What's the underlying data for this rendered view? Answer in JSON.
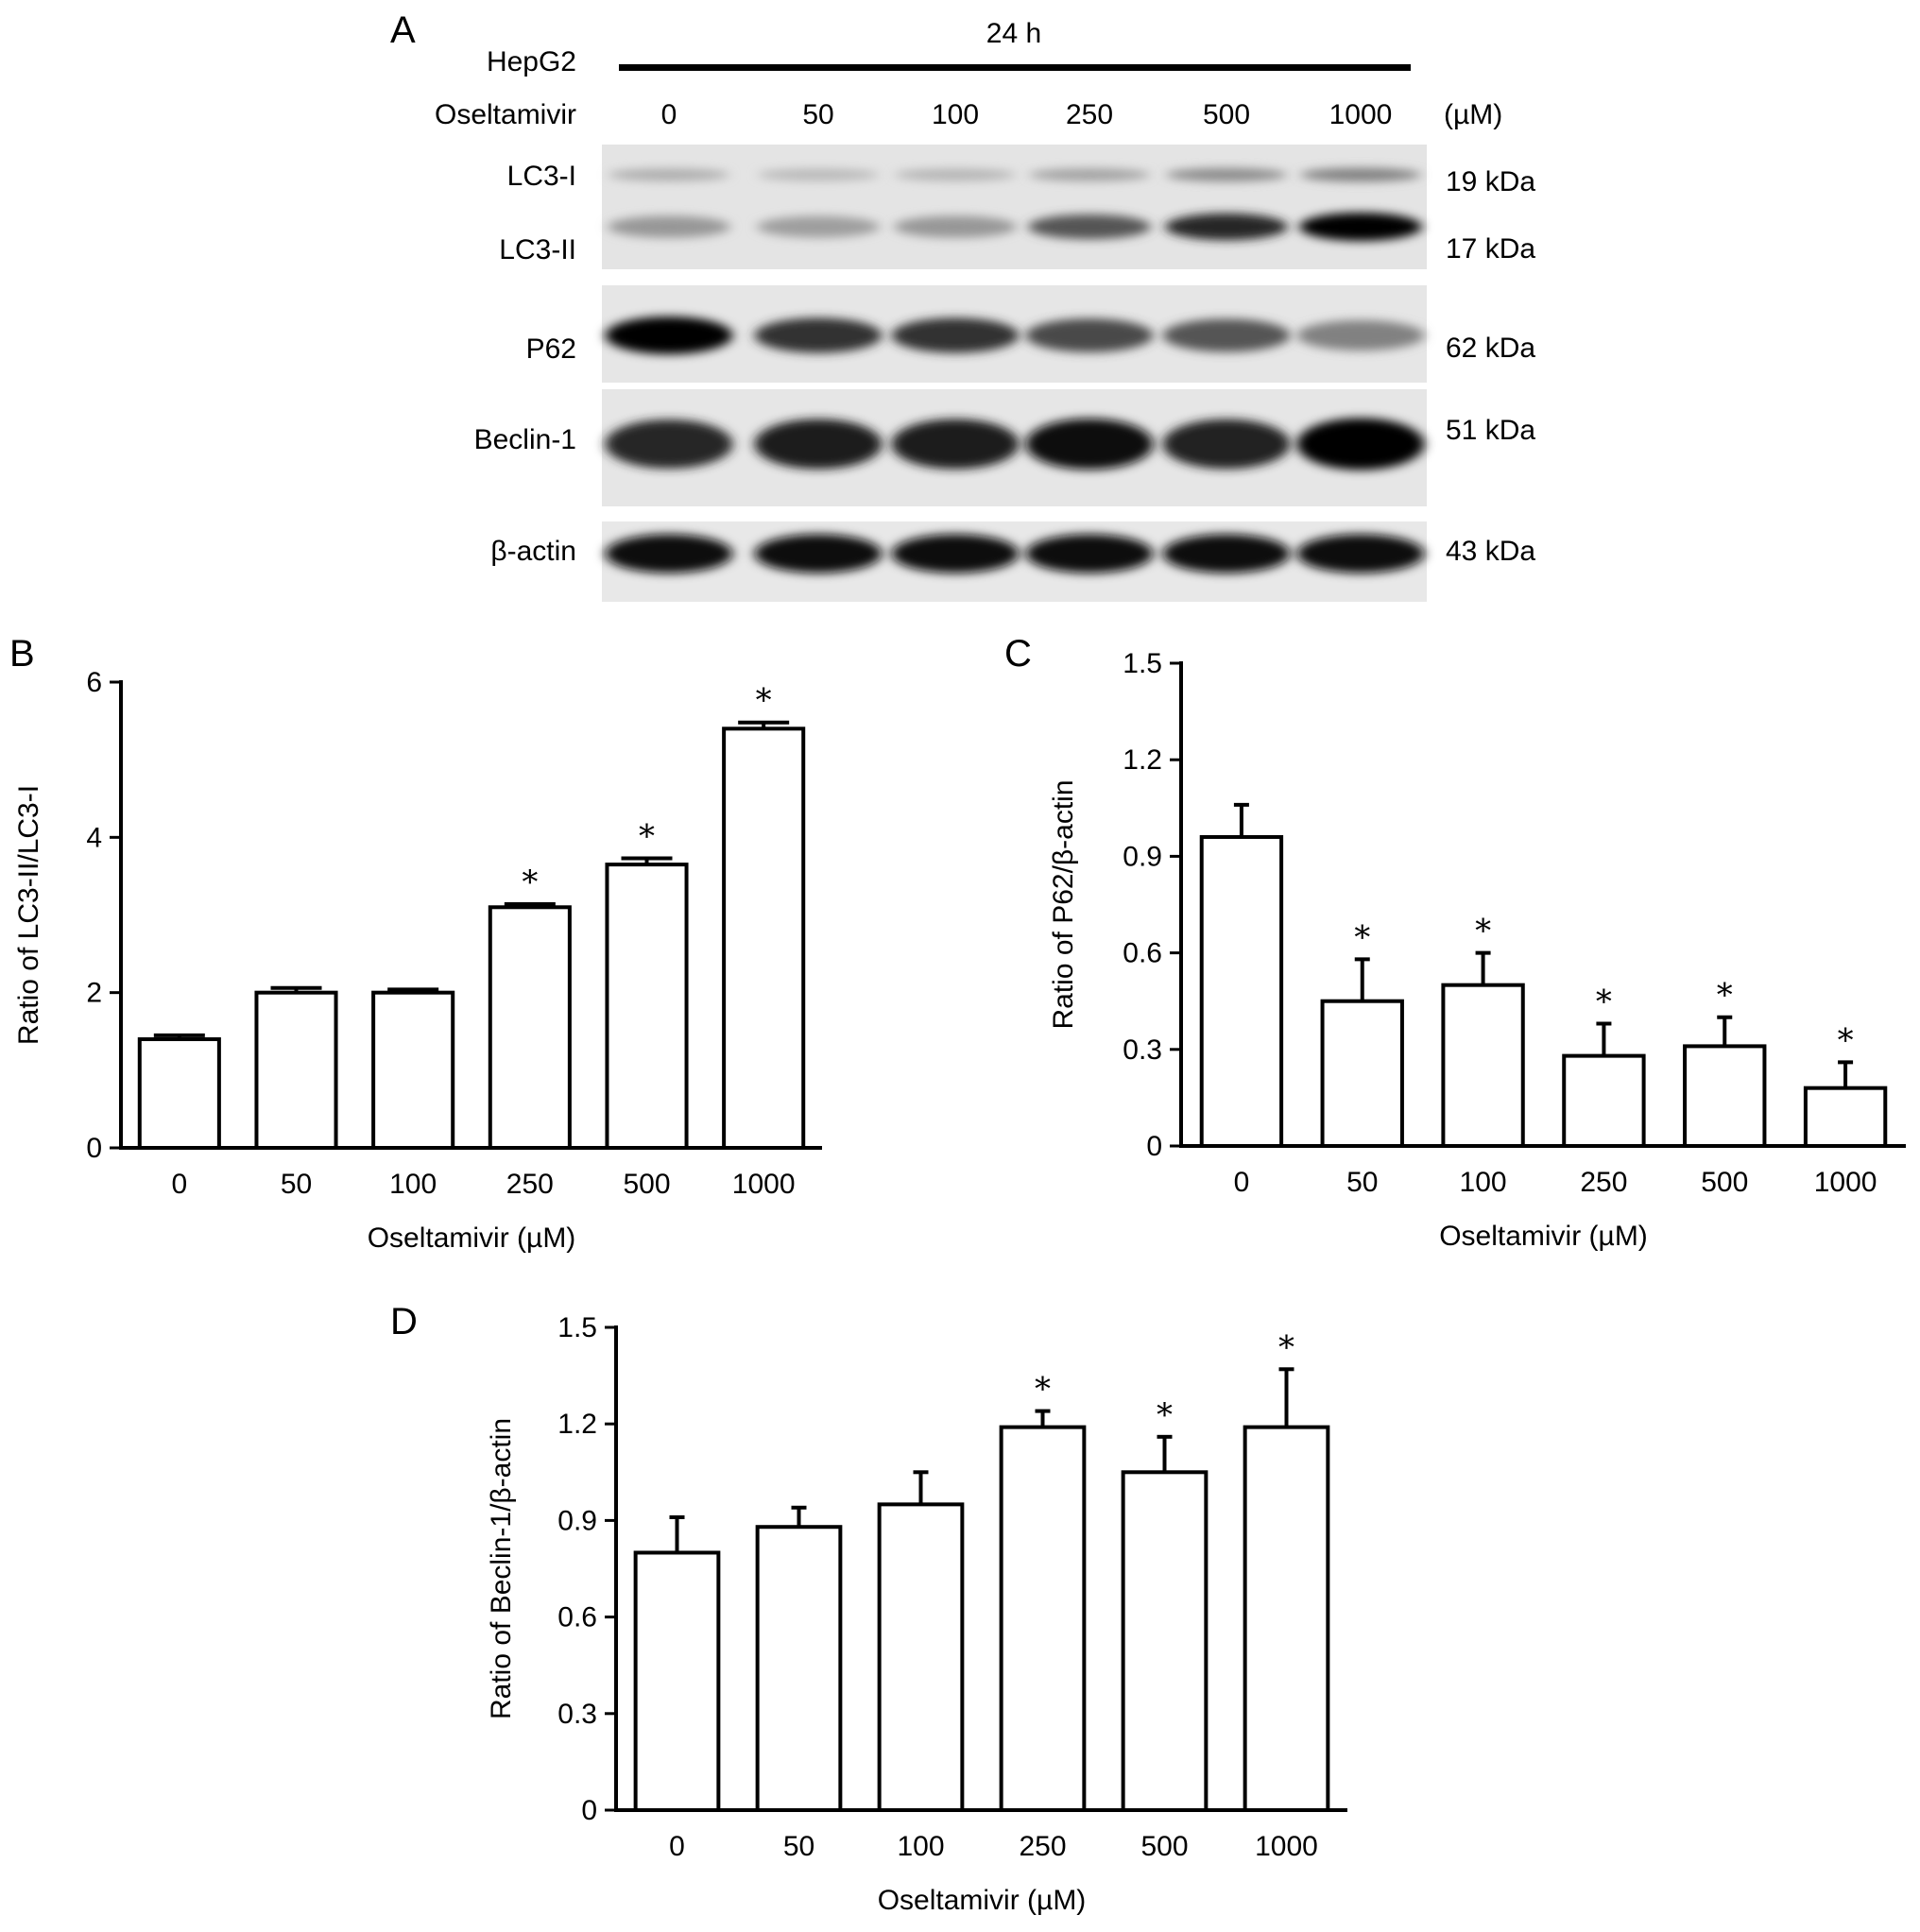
{
  "panel_a": {
    "panel_label": "A",
    "time_label": "24 h",
    "cell_line": "HepG2",
    "treatment_label": "Oseltamivir",
    "unit_label": "(µM)",
    "concentrations": [
      "0",
      "50",
      "100",
      "250",
      "500",
      "1000"
    ],
    "bands": [
      {
        "label": "LC3-I",
        "mw": "19 kDa"
      },
      {
        "label": "LC3-II",
        "mw": "17 kDa"
      },
      {
        "label": "P62",
        "mw": "62 kDa"
      },
      {
        "label": "Beclin-1",
        "mw": "51 kDa"
      },
      {
        "label": "β-actin",
        "mw": "43 kDa"
      }
    ],
    "band_intensity": {
      "LC3-I": [
        0.25,
        0.2,
        0.22,
        0.3,
        0.4,
        0.45
      ],
      "LC3-II": [
        0.35,
        0.32,
        0.35,
        0.65,
        0.85,
        1.0
      ],
      "P62": [
        1.0,
        0.8,
        0.8,
        0.7,
        0.65,
        0.45
      ],
      "Beclin-1": [
        0.85,
        0.9,
        0.9,
        0.95,
        0.88,
        1.0
      ],
      "β-actin": [
        0.95,
        0.95,
        0.95,
        0.95,
        0.95,
        0.95
      ]
    }
  },
  "chart_data": [
    {
      "panel": "B",
      "type": "bar",
      "categories": [
        "0",
        "50",
        "100",
        "250",
        "500",
        "1000"
      ],
      "values": [
        1.4,
        2.0,
        2.0,
        3.1,
        3.65,
        5.4
      ],
      "errors": [
        0.05,
        0.06,
        0.04,
        0.04,
        0.08,
        0.08
      ],
      "significant": [
        false,
        false,
        false,
        true,
        true,
        true
      ],
      "significance_marker": "*",
      "xlabel": "Oseltamivir (µM)",
      "ylabel": "Ratio of LC3-II/LC3-I",
      "ylim": [
        0,
        6
      ],
      "yticks": [
        "0",
        "2",
        "4",
        "6"
      ],
      "grid": false,
      "bar_color": "#ffffff",
      "edge_color": "#000000"
    },
    {
      "panel": "C",
      "type": "bar",
      "categories": [
        "0",
        "50",
        "100",
        "250",
        "500",
        "1000"
      ],
      "values": [
        0.96,
        0.45,
        0.5,
        0.28,
        0.31,
        0.18
      ],
      "errors": [
        0.1,
        0.13,
        0.1,
        0.1,
        0.09,
        0.08
      ],
      "significant": [
        false,
        true,
        true,
        true,
        true,
        true
      ],
      "significance_marker": "*",
      "xlabel": "Oseltamivir (µM)",
      "ylabel": "Ratio of P62/β-actin",
      "ylim": [
        0,
        1.5
      ],
      "yticks": [
        "0",
        "0.3",
        "0.6",
        "0.9",
        "1.2",
        "1.5"
      ],
      "grid": false,
      "bar_color": "#ffffff",
      "edge_color": "#000000"
    },
    {
      "panel": "D",
      "type": "bar",
      "categories": [
        "0",
        "50",
        "100",
        "250",
        "500",
        "1000"
      ],
      "values": [
        0.8,
        0.88,
        0.95,
        1.19,
        1.05,
        1.19
      ],
      "errors": [
        0.11,
        0.06,
        0.1,
        0.05,
        0.11,
        0.18
      ],
      "significant": [
        false,
        false,
        false,
        true,
        true,
        true
      ],
      "significance_marker": "*",
      "xlabel": "Oseltamivir (µM)",
      "ylabel": "Ratio of Beclin-1/β-actin",
      "ylim": [
        0,
        1.5
      ],
      "yticks": [
        "0",
        "0.3",
        "0.6",
        "0.9",
        "1.2",
        "1.5"
      ],
      "grid": false,
      "bar_color": "#ffffff",
      "edge_color": "#000000"
    }
  ]
}
